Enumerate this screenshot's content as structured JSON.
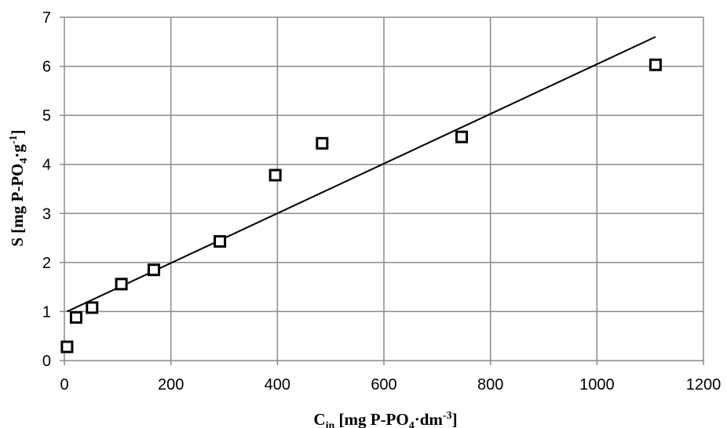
{
  "chart_data": {
    "type": "scatter",
    "title": "",
    "xlabel": {
      "main": "C",
      "sub": "in",
      "rest1": " [mg P-PO",
      "sub2": "4",
      "rest2": "·dm",
      "sup": "-3",
      "rest3": "]"
    },
    "ylabel": {
      "main": "S [mg P-PO",
      "sub": "4",
      "rest1": "·g",
      "sup": "-1",
      "rest2": "]"
    },
    "xlim": [
      0,
      1200
    ],
    "ylim": [
      0,
      7
    ],
    "xticks": [
      0,
      200,
      400,
      600,
      800,
      1000,
      1200
    ],
    "yticks": [
      0,
      1,
      2,
      3,
      4,
      5,
      6,
      7
    ],
    "grid": true,
    "marker": "open-square",
    "points": [
      {
        "x": 5,
        "y": 0.28
      },
      {
        "x": 22,
        "y": 0.88
      },
      {
        "x": 52,
        "y": 1.08
      },
      {
        "x": 107,
        "y": 1.56
      },
      {
        "x": 168,
        "y": 1.85
      },
      {
        "x": 292,
        "y": 2.43
      },
      {
        "x": 396,
        "y": 3.78
      },
      {
        "x": 484,
        "y": 4.43
      },
      {
        "x": 746,
        "y": 4.56
      },
      {
        "x": 1110,
        "y": 6.03
      }
    ],
    "trendline": {
      "type": "linear",
      "from": {
        "x": 5,
        "y": 1.0
      },
      "to": {
        "x": 1110,
        "y": 6.6
      }
    }
  }
}
